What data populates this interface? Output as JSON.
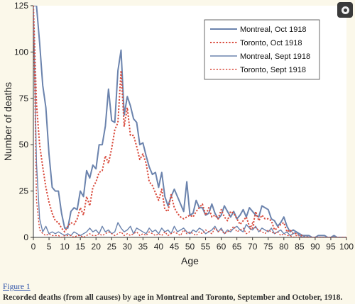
{
  "caption": {
    "figure_label": "Figure 1",
    "text": "Recorded deaths (from all causes) by age in Montreal and Toronto, September and October, 1918."
  },
  "zoom_button": {
    "icon": "zoom-icon"
  },
  "colors": {
    "montreal": "#6b83ad",
    "toronto": "#d94a3c",
    "background": "#fbf8ea"
  },
  "chart_data": {
    "type": "line",
    "xlabel": "Age",
    "ylabel": "Number of deaths",
    "xlim": [
      0,
      100
    ],
    "ylim": [
      0,
      125
    ],
    "xticks": [
      "0",
      "5",
      "10",
      "15",
      "20",
      "25",
      "30",
      "35",
      "40",
      "45",
      "50",
      "55",
      "60",
      "65",
      "70",
      "75",
      "80",
      "85",
      "90",
      "95",
      "100"
    ],
    "yticks": [
      "0",
      "25",
      "50",
      "75",
      "100",
      "125"
    ],
    "grid": false,
    "legend_position": "top-right",
    "series": [
      {
        "name": "Montreal, Oct 1918",
        "color": "#6b83ad",
        "dash": "solid",
        "stroke_width": 2,
        "x": [
          0,
          1,
          2,
          3,
          4,
          5,
          6,
          7,
          8,
          9,
          10,
          11,
          12,
          13,
          14,
          15,
          16,
          17,
          18,
          19,
          20,
          21,
          22,
          23,
          24,
          25,
          26,
          27,
          28,
          29,
          30,
          31,
          32,
          33,
          34,
          35,
          36,
          37,
          38,
          39,
          40,
          41,
          42,
          43,
          44,
          45,
          46,
          47,
          48,
          49,
          50,
          51,
          52,
          53,
          54,
          55,
          56,
          57,
          58,
          59,
          60,
          61,
          62,
          63,
          64,
          65,
          66,
          67,
          68,
          69,
          70,
          71,
          72,
          73,
          74,
          75,
          76,
          77,
          78,
          79,
          80,
          81,
          82,
          83,
          84,
          85,
          86,
          87,
          88,
          89,
          90,
          91,
          92,
          93,
          94,
          95,
          96,
          97,
          98,
          99,
          100
        ],
        "y": [
          125,
          125,
          105,
          82,
          70,
          45,
          27,
          25,
          25,
          13,
          5,
          5,
          14,
          16,
          15,
          25,
          22,
          36,
          32,
          39,
          37,
          50,
          50,
          60,
          80,
          63,
          62,
          90,
          101,
          66,
          76,
          71,
          64,
          62,
          50,
          51,
          44,
          38,
          34,
          35,
          27,
          35,
          22,
          17,
          22,
          26,
          22,
          18,
          14,
          30,
          12,
          13,
          20,
          16,
          16,
          12,
          13,
          18,
          13,
          10,
          12,
          17,
          14,
          11,
          14,
          10,
          12,
          15,
          11,
          16,
          14,
          12,
          11,
          17,
          16,
          15,
          10,
          9,
          6,
          8,
          11,
          6,
          3,
          4,
          3,
          2,
          1,
          1,
          1,
          0,
          0,
          1,
          1,
          1,
          0,
          0,
          1,
          0,
          0,
          0,
          0
        ]
      },
      {
        "name": "Toronto, Oct 1918",
        "color": "#d94a3c",
        "dash": "dotted",
        "stroke_width": 2,
        "x": [
          0,
          1,
          2,
          3,
          4,
          5,
          6,
          7,
          8,
          9,
          10,
          11,
          12,
          13,
          14,
          15,
          16,
          17,
          18,
          19,
          20,
          21,
          22,
          23,
          24,
          25,
          26,
          27,
          28,
          29,
          30,
          31,
          32,
          33,
          34,
          35,
          36,
          37,
          38,
          39,
          40,
          41,
          42,
          43,
          44,
          45,
          46,
          47,
          48,
          49,
          50,
          51,
          52,
          53,
          54,
          55,
          56,
          57,
          58,
          59,
          60,
          61,
          62,
          63,
          64,
          65,
          66,
          67,
          68,
          69,
          70,
          71,
          72,
          73,
          74,
          75,
          76,
          77,
          78,
          79,
          80,
          81,
          82,
          83,
          84,
          85,
          86,
          87,
          88,
          89,
          90,
          91,
          92,
          93,
          94,
          95,
          96,
          97,
          98,
          99,
          100
        ],
        "y": [
          125,
          72,
          50,
          38,
          27,
          19,
          13,
          9,
          8,
          5,
          3,
          6,
          8,
          7,
          10,
          16,
          12,
          22,
          17,
          27,
          30,
          35,
          36,
          44,
          40,
          48,
          58,
          62,
          90,
          60,
          70,
          55,
          55,
          49,
          42,
          45,
          40,
          30,
          28,
          24,
          20,
          26,
          15,
          14,
          23,
          16,
          13,
          11,
          10,
          11,
          12,
          11,
          14,
          16,
          18,
          12,
          16,
          11,
          12,
          10,
          15,
          11,
          9,
          14,
          13,
          10,
          7,
          9,
          11,
          6,
          5,
          14,
          9,
          12,
          10,
          10,
          9,
          4,
          5,
          7,
          8,
          3,
          4,
          2,
          2,
          1,
          1,
          0,
          0,
          0,
          0,
          0,
          0,
          0,
          0,
          0,
          0,
          0,
          0,
          0,
          0
        ]
      },
      {
        "name": "Montreal, Sept 1918",
        "color": "#6b83ad",
        "dash": "solid",
        "stroke_width": 1.4,
        "x": [
          0,
          1,
          2,
          3,
          4,
          5,
          6,
          7,
          8,
          9,
          10,
          11,
          12,
          13,
          14,
          15,
          16,
          17,
          18,
          19,
          20,
          21,
          22,
          23,
          24,
          25,
          26,
          27,
          28,
          29,
          30,
          31,
          32,
          33,
          34,
          35,
          36,
          37,
          38,
          39,
          40,
          41,
          42,
          43,
          44,
          45,
          46,
          47,
          48,
          49,
          50,
          51,
          52,
          53,
          54,
          55,
          56,
          57,
          58,
          59,
          60,
          61,
          62,
          63,
          64,
          65,
          66,
          67,
          68,
          69,
          70,
          71,
          72,
          73,
          74,
          75,
          76,
          77,
          78,
          79,
          80,
          81,
          82,
          83,
          84,
          85,
          86,
          87,
          88,
          89,
          90,
          91,
          92,
          93,
          94,
          95,
          96,
          97,
          98,
          99,
          100
        ],
        "y": [
          125,
          40,
          10,
          3,
          6,
          2,
          3,
          2,
          3,
          2,
          1,
          2,
          1,
          3,
          2,
          1,
          2,
          3,
          5,
          3,
          4,
          2,
          6,
          3,
          4,
          2,
          3,
          8,
          5,
          3,
          4,
          6,
          2,
          5,
          4,
          3,
          2,
          5,
          3,
          4,
          2,
          5,
          3,
          4,
          2,
          6,
          3,
          4,
          5,
          3,
          2,
          4,
          3,
          5,
          4,
          2,
          3,
          4,
          6,
          3,
          5,
          2,
          4,
          3,
          5,
          6,
          4,
          3,
          7,
          5,
          4,
          6,
          3,
          5,
          4,
          3,
          5,
          2,
          3,
          4,
          2,
          3,
          1,
          2,
          3,
          1,
          0,
          1,
          0,
          0,
          0,
          0,
          0,
          0,
          0,
          0,
          0,
          0,
          0,
          0,
          0
        ]
      },
      {
        "name": "Toronto, Sept 1918",
        "color": "#d94a3c",
        "dash": "dotted",
        "stroke_width": 1.4,
        "x": [
          0,
          1,
          2,
          3,
          4,
          5,
          6,
          7,
          8,
          9,
          10,
          11,
          12,
          13,
          14,
          15,
          16,
          17,
          18,
          19,
          20,
          21,
          22,
          23,
          24,
          25,
          26,
          27,
          28,
          29,
          30,
          31,
          32,
          33,
          34,
          35,
          36,
          37,
          38,
          39,
          40,
          41,
          42,
          43,
          44,
          45,
          46,
          47,
          48,
          49,
          50,
          51,
          52,
          53,
          54,
          55,
          56,
          57,
          58,
          59,
          60,
          61,
          62,
          63,
          64,
          65,
          66,
          67,
          68,
          69,
          70,
          71,
          72,
          73,
          74,
          75,
          76,
          77,
          78,
          79,
          80,
          81,
          82,
          83,
          84,
          85,
          86,
          87,
          88,
          89,
          90,
          91,
          92,
          93,
          94,
          95,
          96,
          97,
          98,
          99,
          100
        ],
        "y": [
          125,
          20,
          4,
          2,
          1,
          2,
          1,
          1,
          1,
          0,
          1,
          1,
          1,
          0,
          1,
          1,
          0,
          1,
          2,
          1,
          1,
          2,
          1,
          2,
          3,
          2,
          1,
          2,
          3,
          1,
          2,
          1,
          2,
          3,
          1,
          2,
          1,
          3,
          2,
          1,
          2,
          1,
          3,
          1,
          2,
          3,
          2,
          1,
          4,
          2,
          3,
          2,
          1,
          3,
          2,
          4,
          3,
          2,
          5,
          3,
          4,
          2,
          3,
          4,
          6,
          3,
          4,
          5,
          2,
          3,
          8,
          5,
          4,
          3,
          2,
          4,
          3,
          2,
          3,
          1,
          2,
          1,
          1,
          0,
          1,
          0,
          0,
          0,
          0,
          0,
          0,
          0,
          0,
          0,
          0,
          0,
          0,
          0,
          0,
          0,
          0
        ]
      }
    ]
  }
}
